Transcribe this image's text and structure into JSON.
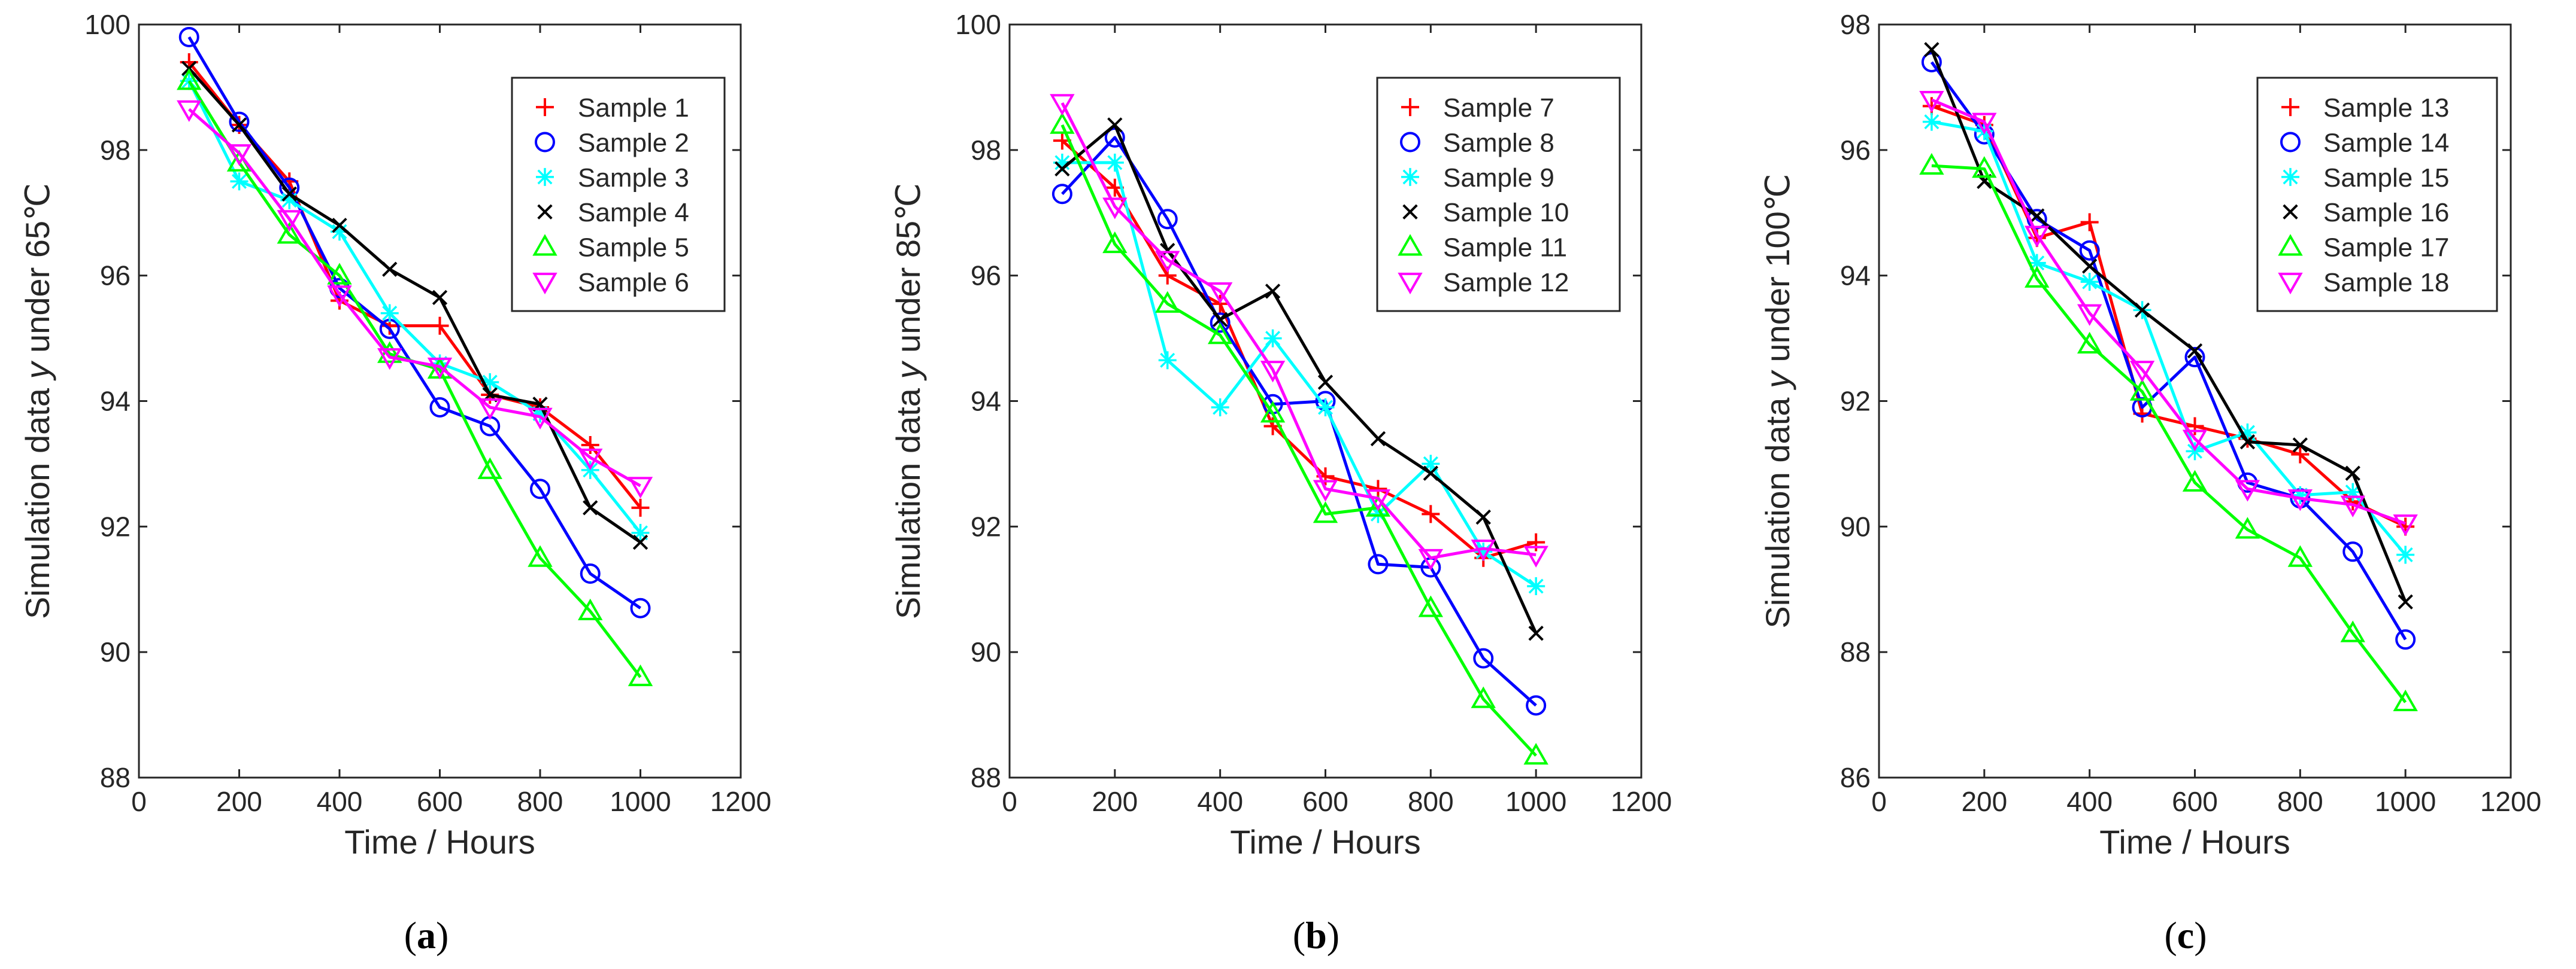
{
  "chart_data": [
    {
      "type": "line",
      "panel_label": "a",
      "xlabel": "Time / Hours",
      "ylabel": "Simulation data y under 65℃",
      "ylabel_parts": [
        "Simulation data ",
        "y",
        " under 65℃"
      ],
      "xlim": [
        0,
        1200
      ],
      "ylim": [
        88,
        100
      ],
      "xticks": [
        0,
        200,
        400,
        600,
        800,
        1000,
        1200
      ],
      "yticks": [
        88,
        90,
        92,
        94,
        96,
        98,
        100
      ],
      "grid": false,
      "legend": "top-right",
      "x": [
        100,
        200,
        300,
        400,
        500,
        600,
        700,
        800,
        900,
        1000
      ],
      "series": [
        {
          "name": "Sample 1",
          "color": "#ff0000",
          "marker": "plus",
          "values": [
            99.4,
            98.4,
            97.5,
            95.6,
            95.2,
            95.2,
            94.1,
            93.9,
            93.3,
            92.3
          ]
        },
        {
          "name": "Sample 2",
          "color": "#0000ff",
          "marker": "circle",
          "values": [
            99.8,
            98.45,
            97.4,
            95.8,
            95.15,
            93.9,
            93.6,
            92.6,
            91.25,
            90.7
          ]
        },
        {
          "name": "Sample 3",
          "color": "#00ffff",
          "marker": "asterisk",
          "values": [
            99.1,
            97.5,
            97.2,
            96.7,
            95.4,
            94.6,
            94.3,
            93.8,
            92.9,
            91.9
          ]
        },
        {
          "name": "Sample 4",
          "color": "#000000",
          "marker": "x",
          "values": [
            99.3,
            98.4,
            97.3,
            96.8,
            96.1,
            95.65,
            94.1,
            93.95,
            92.3,
            91.75
          ]
        },
        {
          "name": "Sample 5",
          "color": "#00ff00",
          "marker": "triangle-up",
          "values": [
            99.1,
            97.8,
            96.65,
            96.0,
            94.75,
            94.5,
            92.9,
            91.5,
            90.65,
            89.6
          ]
        },
        {
          "name": "Sample 6",
          "color": "#ff00ff",
          "marker": "triangle-down",
          "values": [
            98.65,
            97.95,
            96.9,
            95.7,
            94.7,
            94.55,
            93.9,
            93.75,
            93.1,
            92.65
          ]
        }
      ]
    },
    {
      "type": "line",
      "panel_label": "b",
      "xlabel": "Time / Hours",
      "ylabel": "Simulation data y under 85℃",
      "ylabel_parts": [
        "Simulation data ",
        "y",
        " under 85℃"
      ],
      "xlim": [
        0,
        1200
      ],
      "ylim": [
        88,
        100
      ],
      "xticks": [
        0,
        200,
        400,
        600,
        800,
        1000,
        1200
      ],
      "yticks": [
        88,
        90,
        92,
        94,
        96,
        98,
        100
      ],
      "grid": false,
      "legend": "top-right",
      "x": [
        100,
        200,
        300,
        400,
        500,
        600,
        700,
        800,
        900,
        1000
      ],
      "series": [
        {
          "name": "Sample 7",
          "color": "#ff0000",
          "marker": "plus",
          "values": [
            98.15,
            97.4,
            96.0,
            95.55,
            93.6,
            92.8,
            92.6,
            92.2,
            91.5,
            91.75
          ]
        },
        {
          "name": "Sample 8",
          "color": "#0000ff",
          "marker": "circle",
          "values": [
            97.3,
            98.2,
            96.9,
            95.25,
            93.95,
            94.0,
            91.4,
            91.35,
            89.9,
            89.15
          ]
        },
        {
          "name": "Sample 9",
          "color": "#00ffff",
          "marker": "asterisk",
          "values": [
            97.8,
            97.8,
            94.65,
            93.9,
            95.0,
            93.9,
            92.2,
            93.0,
            91.6,
            91.05
          ]
        },
        {
          "name": "Sample 10",
          "color": "#000000",
          "marker": "x",
          "values": [
            97.7,
            98.4,
            96.4,
            95.3,
            95.75,
            94.3,
            93.4,
            92.85,
            92.15,
            90.3
          ]
        },
        {
          "name": "Sample 11",
          "color": "#00ff00",
          "marker": "triangle-up",
          "values": [
            98.4,
            96.5,
            95.55,
            95.05,
            93.8,
            92.2,
            92.3,
            90.7,
            89.25,
            88.35
          ]
        },
        {
          "name": "Sample 12",
          "color": "#ff00ff",
          "marker": "triangle-down",
          "values": [
            98.75,
            97.1,
            96.25,
            95.75,
            94.5,
            92.6,
            92.45,
            91.5,
            91.65,
            91.55
          ]
        }
      ]
    },
    {
      "type": "line",
      "panel_label": "c",
      "xlabel": "Time / Hours",
      "ylabel": "Simulation data y under 100℃",
      "ylabel_parts": [
        "Simulation data ",
        "y",
        " under 100℃"
      ],
      "xlim": [
        0,
        1200
      ],
      "ylim": [
        86,
        98
      ],
      "xticks": [
        0,
        200,
        400,
        600,
        800,
        1000,
        1200
      ],
      "yticks": [
        86,
        88,
        90,
        92,
        94,
        96,
        98
      ],
      "grid": false,
      "legend": "top-right",
      "x": [
        100,
        200,
        300,
        400,
        500,
        600,
        700,
        800,
        900,
        1000
      ],
      "series": [
        {
          "name": "Sample 13",
          "color": "#ff0000",
          "marker": "plus",
          "values": [
            96.7,
            96.4,
            94.6,
            94.85,
            91.8,
            91.6,
            91.4,
            91.15,
            90.4,
            90.0
          ]
        },
        {
          "name": "Sample 14",
          "color": "#0000ff",
          "marker": "circle",
          "values": [
            97.4,
            96.25,
            94.9,
            94.4,
            91.9,
            92.7,
            90.7,
            90.45,
            89.6,
            88.2
          ]
        },
        {
          "name": "Sample 15",
          "color": "#00ffff",
          "marker": "asterisk",
          "values": [
            96.45,
            96.3,
            94.2,
            93.9,
            93.45,
            91.2,
            91.5,
            90.5,
            90.55,
            89.55
          ]
        },
        {
          "name": "Sample 16",
          "color": "#000000",
          "marker": "x",
          "values": [
            97.6,
            95.5,
            94.95,
            94.15,
            93.45,
            92.8,
            91.35,
            91.3,
            90.85,
            88.8
          ]
        },
        {
          "name": "Sample 17",
          "color": "#00ff00",
          "marker": "triangle-up",
          "values": [
            95.75,
            95.7,
            93.95,
            92.9,
            92.15,
            90.7,
            89.95,
            89.5,
            88.3,
            87.2
          ]
        },
        {
          "name": "Sample 18",
          "color": "#ff00ff",
          "marker": "triangle-down",
          "values": [
            96.8,
            96.45,
            94.65,
            93.4,
            92.5,
            91.4,
            90.6,
            90.45,
            90.35,
            90.05
          ]
        }
      ]
    }
  ]
}
